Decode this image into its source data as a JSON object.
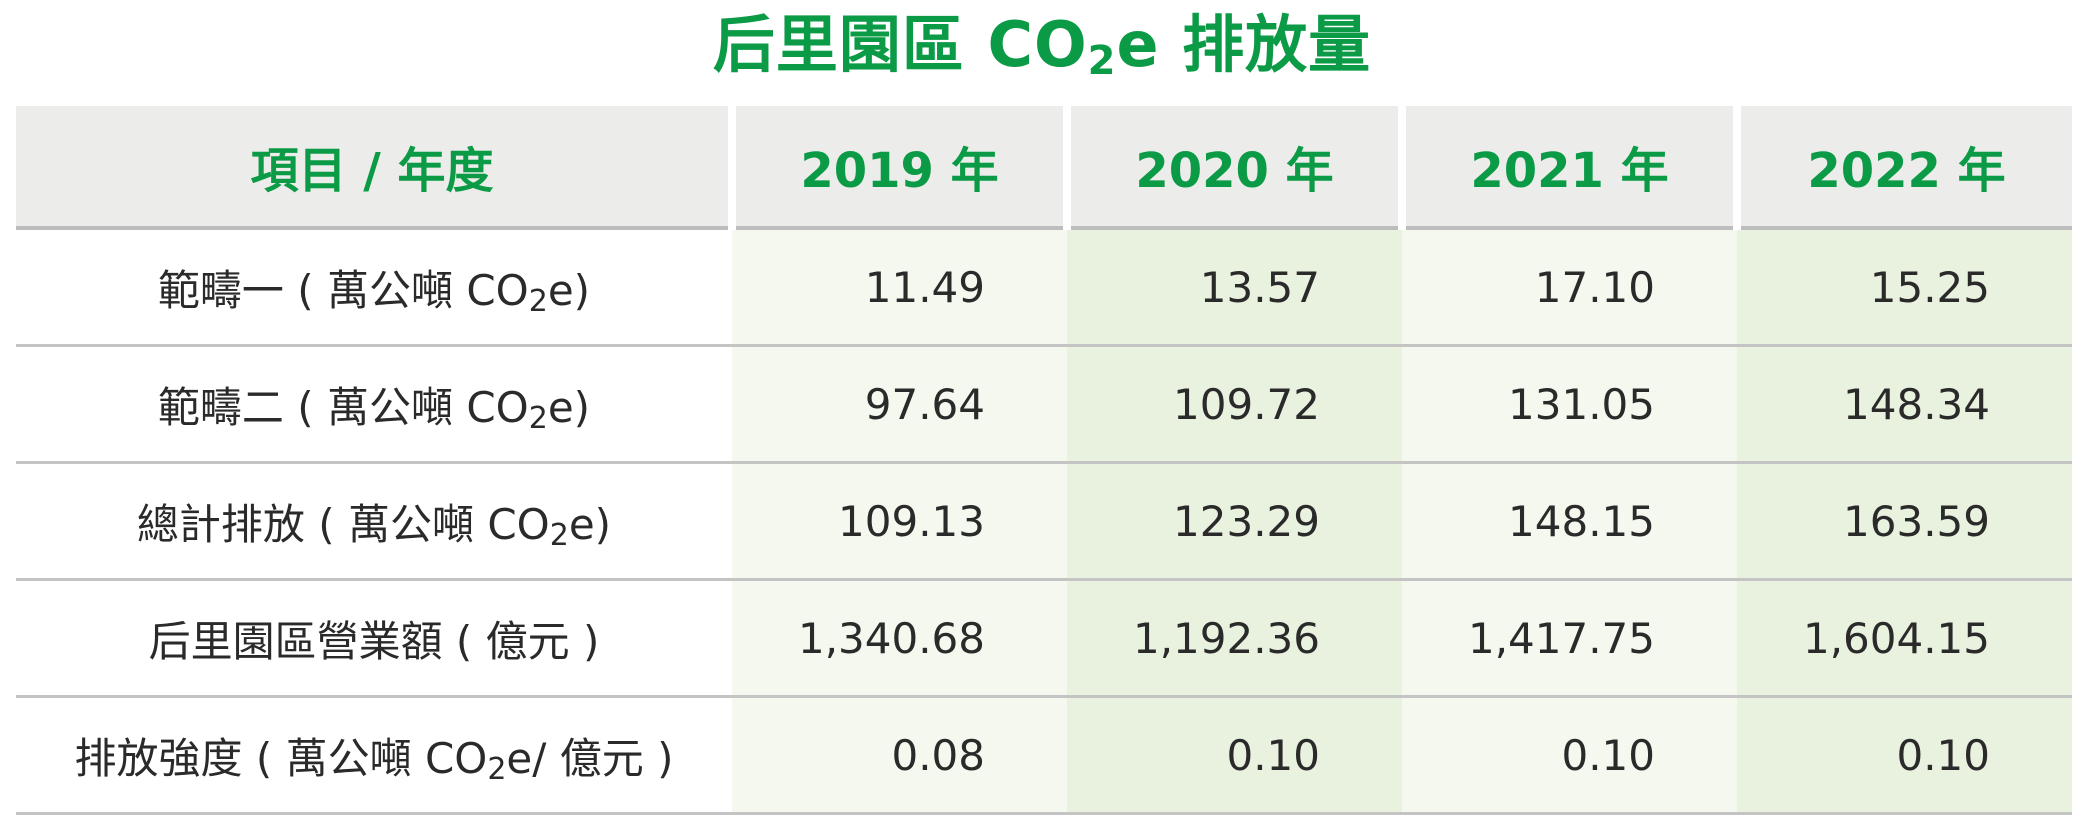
{
  "title": {
    "prefix": "后里園區 CO",
    "subscript": "2",
    "suffix": "e 排放量"
  },
  "colors": {
    "accent_green": "#0b9a45",
    "header_bg": "#ececea",
    "col_light_bg": "#f4f8ee",
    "col_dark_bg": "#e9f1df"
  },
  "table": {
    "headers": [
      "項目 / 年度",
      "2019 年",
      "2020 年",
      "2021 年",
      "2022 年"
    ],
    "rows": [
      {
        "label": {
          "pre": "範疇一 ( 萬公噸 CO",
          "sub": "2",
          "post": "e)"
        },
        "values": [
          "11.49",
          "13.57",
          "17.10",
          "15.25"
        ]
      },
      {
        "label": {
          "pre": "範疇二 ( 萬公噸 CO",
          "sub": "2",
          "post": "e)"
        },
        "values": [
          "97.64",
          "109.72",
          "131.05",
          "148.34"
        ]
      },
      {
        "label": {
          "pre": "總計排放 ( 萬公噸 CO",
          "sub": "2",
          "post": "e)"
        },
        "values": [
          "109.13",
          "123.29",
          "148.15",
          "163.59"
        ]
      },
      {
        "label": {
          "pre": "后里園區營業額 ( 億元 )",
          "sub": "",
          "post": ""
        },
        "values": [
          "1,340.68",
          "1,192.36",
          "1,417.75",
          "1,604.15"
        ]
      },
      {
        "label": {
          "pre": "排放強度 ( 萬公噸 CO",
          "sub": "2",
          "post": "e/ 億元 )"
        },
        "values": [
          "0.08",
          "0.10",
          "0.10",
          "0.10"
        ]
      }
    ]
  }
}
